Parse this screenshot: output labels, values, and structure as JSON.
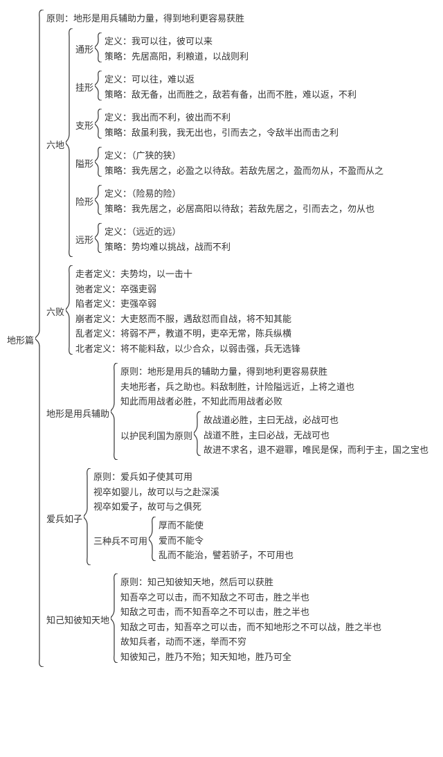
{
  "colors": {
    "text": "#333333",
    "brace": "#333333",
    "bg": "#ffffff"
  },
  "font": {
    "family": "SimSun",
    "size_pt": 13,
    "line_height": 1.65
  },
  "root": {
    "label": "地形篇",
    "children": [
      {
        "type": "line",
        "text": "原则：地形是用兵辅助力量，得到地利更容易获胜"
      },
      {
        "type": "group",
        "label": "六地",
        "children": [
          {
            "type": "group",
            "label": "通形",
            "children": [
              {
                "type": "line",
                "text": "定义：我可以往，彼可以来"
              },
              {
                "type": "line",
                "text": "策略：先居高阳，利粮道，以战则利"
              }
            ]
          },
          {
            "type": "group",
            "label": "挂形",
            "children": [
              {
                "type": "line",
                "text": "定义：可以往，难以返"
              },
              {
                "type": "line",
                "text": "策略：敌无备，出而胜之，敌若有备，出而不胜，难以返，不利"
              }
            ]
          },
          {
            "type": "group",
            "label": "支形",
            "children": [
              {
                "type": "line",
                "text": "定义：我出而不利，彼出而不利"
              },
              {
                "type": "line",
                "text": "策略：敌虽利我，我无出也，引而去之，令敌半出而击之利"
              }
            ]
          },
          {
            "type": "group",
            "label": "隘形",
            "children": [
              {
                "type": "line",
                "text": "定义：（广狭的狭）"
              },
              {
                "type": "line",
                "text": "策略：我先居之，必盈之以待敌。若敌先居之，盈而勿从，不盈而从之"
              }
            ]
          },
          {
            "type": "group",
            "label": "险形",
            "children": [
              {
                "type": "line",
                "text": "定义：（险易的险）"
              },
              {
                "type": "line",
                "text": "策略：我先居之，必居高阳以待敌；若敌先居之，引而去之，勿从也"
              }
            ]
          },
          {
            "type": "group",
            "label": "远形",
            "children": [
              {
                "type": "line",
                "text": "定义：（远近的远）"
              },
              {
                "type": "line",
                "text": "策略：势均难以挑战，战而不利"
              }
            ]
          }
        ]
      },
      {
        "type": "group",
        "label": "六败",
        "children": [
          {
            "type": "line",
            "text": "走者定义：夫势均，以一击十"
          },
          {
            "type": "line",
            "text": "弛者定义：卒强吏弱"
          },
          {
            "type": "line",
            "text": "陷者定义：吏强卒弱"
          },
          {
            "type": "line",
            "text": "崩者定义：大吏怒而不服，遇敌怼而自战，将不知其能"
          },
          {
            "type": "line",
            "text": "乱者定义：将弱不严，教道不明，吏卒无常，陈兵纵横"
          },
          {
            "type": "line",
            "text": "北者定义：将不能料敌，以少合众，以弱击强，兵无选锋"
          }
        ]
      },
      {
        "type": "group",
        "label": "地形是用兵辅助",
        "children": [
          {
            "type": "line",
            "text": "原则：地形是用兵的辅助力量，得到地利更容易获胜"
          },
          {
            "type": "line",
            "text": "夫地形者，兵之助也。料敌制胜，计险隘远近，上将之道也"
          },
          {
            "type": "line",
            "text": "知此而用战者必胜，不知此而用战者必败"
          },
          {
            "type": "group",
            "label": "以护民利国为原则",
            "children": [
              {
                "type": "line",
                "text": "故战道必胜，主曰无战，必战可也"
              },
              {
                "type": "line",
                "text": "战道不胜，主曰必战，无战可也"
              },
              {
                "type": "line",
                "text": "故进不求名，退不避罪，唯民是保，而利于主，国之宝也"
              }
            ]
          }
        ]
      },
      {
        "type": "group",
        "label": "爱兵如子",
        "children": [
          {
            "type": "line",
            "text": "原则：爱兵如子使其可用"
          },
          {
            "type": "line",
            "text": "视卒如婴儿，故可以与之赴深溪"
          },
          {
            "type": "line",
            "text": "视卒如爱子，故可与之俱死"
          },
          {
            "type": "group",
            "label": "三种兵不可用",
            "children": [
              {
                "type": "line",
                "text": "厚而不能使"
              },
              {
                "type": "line",
                "text": "爱而不能令"
              },
              {
                "type": "line",
                "text": "乱而不能治，譬若骄子，不可用也"
              }
            ]
          }
        ]
      },
      {
        "type": "group",
        "label": "知己知彼知天地",
        "children": [
          {
            "type": "line",
            "text": "原则：知己知彼知天地，然后可以获胜"
          },
          {
            "type": "line",
            "text": "知吾卒之可以击，而不知敌之不可击，胜之半也"
          },
          {
            "type": "line",
            "text": "知敌之可击，而不知吾卒之不可以击，胜之半也"
          },
          {
            "type": "line",
            "text": "知敌之可击，知吾卒之可以击，而不知地形之不可以战，胜之半也"
          },
          {
            "type": "line",
            "text": "故知兵者，动而不迷，举而不穷"
          },
          {
            "type": "line",
            "text": "知彼知己，胜乃不殆；知天知地，胜乃可全"
          }
        ]
      }
    ]
  }
}
